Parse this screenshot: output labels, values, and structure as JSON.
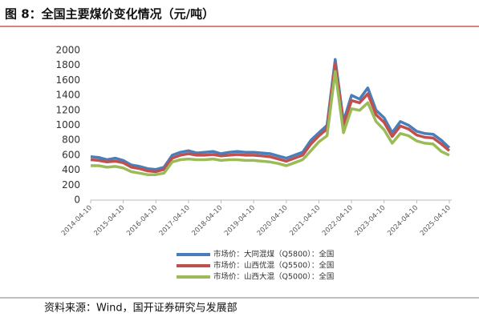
{
  "chart_data": {
    "type": "line",
    "title": "图 8：全国主要煤价变化情况（元/吨）",
    "source": "资料来源：Wind，国开证券研究与发展部",
    "x": [
      "2014-04-10",
      "2014-07-10",
      "2014-10-10",
      "2015-01-10",
      "2015-04-10",
      "2015-07-10",
      "2015-10-10",
      "2016-01-10",
      "2016-04-10",
      "2016-07-10",
      "2016-10-10",
      "2017-01-10",
      "2017-04-10",
      "2017-07-10",
      "2017-10-10",
      "2018-01-10",
      "2018-04-10",
      "2018-07-10",
      "2018-10-10",
      "2019-01-10",
      "2019-04-10",
      "2019-07-10",
      "2019-10-10",
      "2020-01-10",
      "2020-04-10",
      "2020-07-10",
      "2020-10-10",
      "2021-01-10",
      "2021-04-10",
      "2021-07-10",
      "2021-10-10",
      "2022-01-10",
      "2022-04-10",
      "2022-07-10",
      "2022-10-10",
      "2023-01-10",
      "2023-04-10",
      "2023-07-10",
      "2023-10-10",
      "2024-01-10",
      "2024-04-10",
      "2024-07-10",
      "2024-10-10",
      "2025-01-10",
      "2025-04-10"
    ],
    "xlim": [
      "2014-04-10",
      "2025-04-10"
    ],
    "xticks": [
      "2014-04-10",
      "2015-04-10",
      "2016-04-10",
      "2017-04-10",
      "2018-04-10",
      "2019-04-10",
      "2020-04-10",
      "2021-04-10",
      "2022-04-10",
      "2023-04-10",
      "2024-04-10",
      "2025-04-10"
    ],
    "ylim": [
      0,
      2000
    ],
    "yticks": [
      0,
      200,
      400,
      600,
      800,
      1000,
      1200,
      1400,
      1600,
      1800,
      2000
    ],
    "grid": false,
    "series": [
      {
        "name": "市场价：大同混煤（Q5800）：全国",
        "color": "#4a7ebb",
        "values": [
          580,
          570,
          540,
          560,
          530,
          470,
          450,
          420,
          410,
          440,
          600,
          640,
          660,
          630,
          640,
          650,
          620,
          640,
          650,
          640,
          640,
          630,
          620,
          590,
          560,
          600,
          640,
          800,
          900,
          1000,
          1880,
          1050,
          1400,
          1350,
          1500,
          1200,
          1100,
          900,
          1050,
          1000,
          920,
          890,
          880,
          800,
          700
        ]
      },
      {
        "name": "市场价：山西优混（Q5500）：全国",
        "color": "#c0504d",
        "values": [
          540,
          530,
          510,
          520,
          500,
          440,
          420,
          390,
          380,
          410,
          560,
          600,
          620,
          600,
          600,
          610,
          590,
          600,
          610,
          600,
          600,
          590,
          580,
          550,
          520,
          560,
          600,
          750,
          860,
          950,
          1820,
          1000,
          1330,
          1300,
          1420,
          1140,
          1040,
          850,
          990,
          950,
          870,
          840,
          830,
          750,
          660
        ]
      },
      {
        "name": "市场价：山西大混（Q5000）：全国",
        "color": "#9bbb59",
        "values": [
          460,
          460,
          440,
          450,
          430,
          380,
          360,
          340,
          340,
          360,
          510,
          540,
          550,
          540,
          540,
          550,
          530,
          540,
          540,
          530,
          530,
          520,
          510,
          490,
          460,
          500,
          540,
          660,
          780,
          860,
          1720,
          900,
          1220,
          1200,
          1300,
          1050,
          940,
          760,
          890,
          860,
          790,
          760,
          750,
          650,
          600
        ]
      }
    ]
  }
}
